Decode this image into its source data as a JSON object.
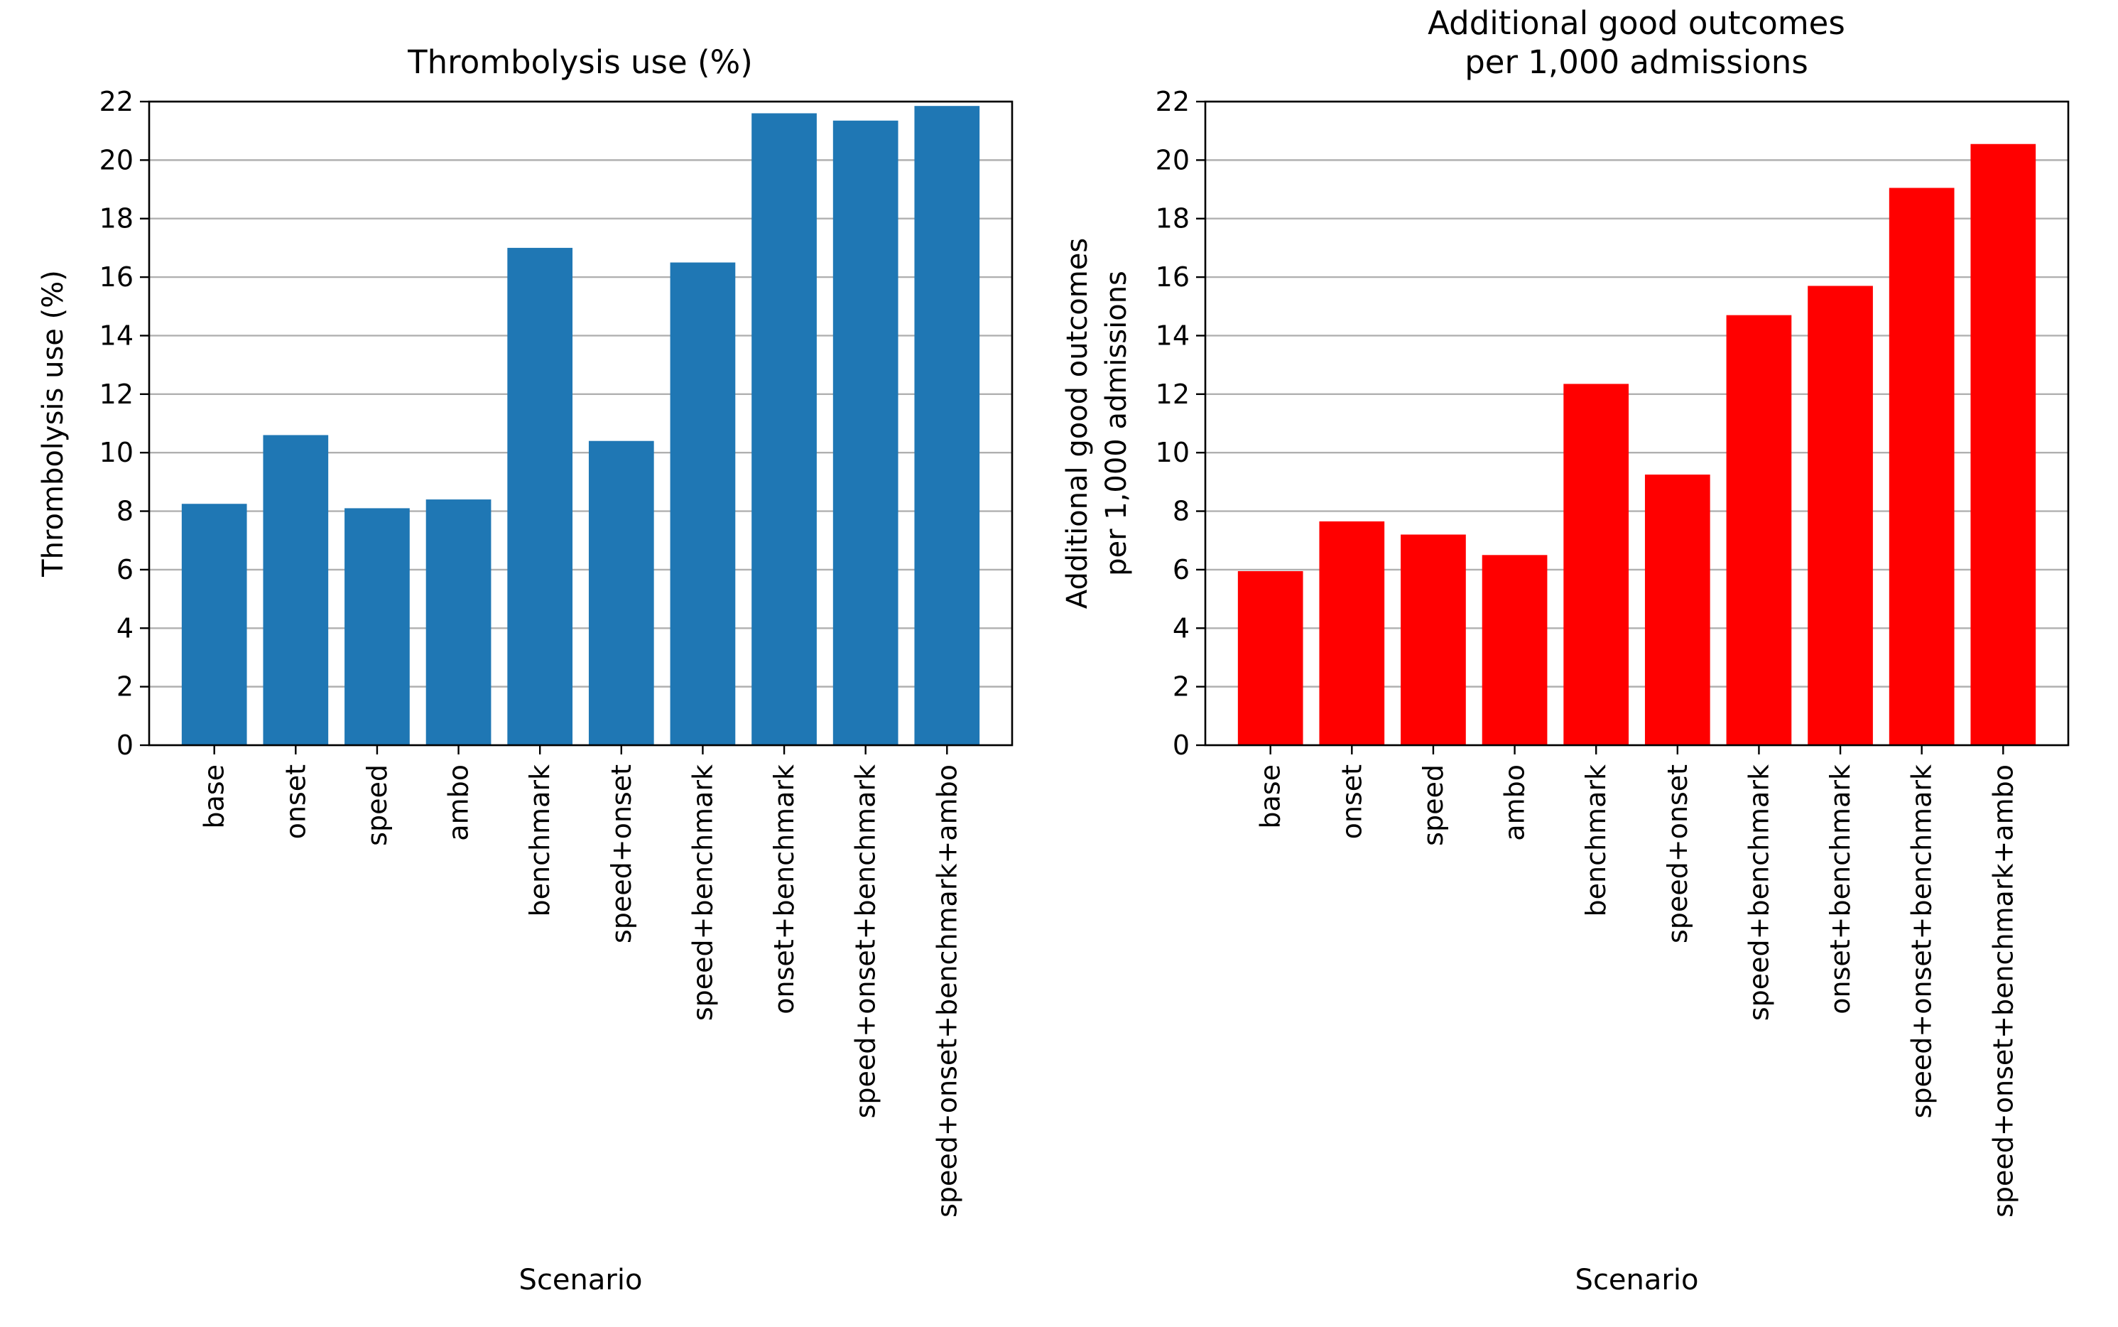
{
  "chart_data": [
    {
      "type": "bar",
      "title": [
        "Thrombolysis use (%)"
      ],
      "xlabel": "Scenario",
      "ylabel": [
        "Thrombolysis use (%)"
      ],
      "ylim": [
        0,
        22
      ],
      "yticks": [
        "0",
        "2",
        "4",
        "6",
        "8",
        "10",
        "12",
        "14",
        "16",
        "18",
        "20",
        "22"
      ],
      "grid": "y",
      "bar_color": "#1f77b4",
      "categories": [
        "base",
        "onset",
        "speed",
        "ambo",
        "benchmark",
        "speed+onset",
        "speed+benchmark",
        "onset+benchmark",
        "speed+onset+benchmark",
        "speed+onset+benchmark+ambo"
      ],
      "values": [
        8.25,
        10.6,
        8.1,
        8.4,
        17.0,
        10.4,
        16.5,
        21.6,
        21.35,
        21.85
      ]
    },
    {
      "type": "bar",
      "title": [
        "Additional good outcomes",
        "per 1,000 admissions"
      ],
      "xlabel": "Scenario",
      "ylabel": [
        "Additional good outcomes",
        "per 1,000 admissions"
      ],
      "ylim": [
        0,
        22
      ],
      "yticks": [
        "0",
        "2",
        "4",
        "6",
        "8",
        "10",
        "12",
        "14",
        "16",
        "18",
        "20",
        "22"
      ],
      "grid": "y",
      "bar_color": "#ff0000",
      "categories": [
        "base",
        "onset",
        "speed",
        "ambo",
        "benchmark",
        "speed+onset",
        "speed+benchmark",
        "onset+benchmark",
        "speed+onset+benchmark",
        "speed+onset+benchmark+ambo"
      ],
      "values": [
        5.95,
        7.65,
        7.2,
        6.5,
        12.35,
        9.25,
        14.7,
        15.7,
        19.05,
        20.55
      ]
    }
  ]
}
